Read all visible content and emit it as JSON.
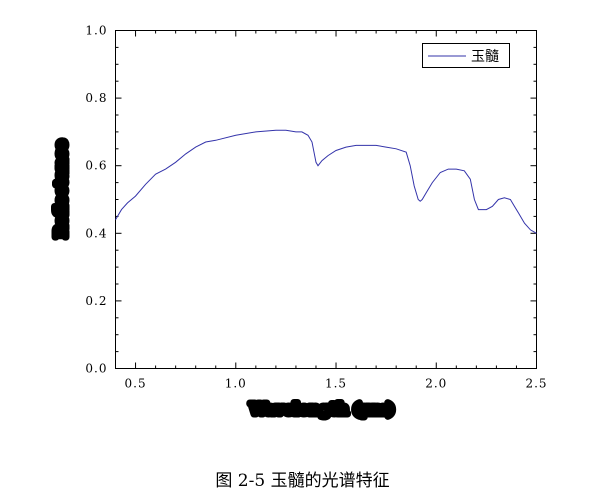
{
  "caption": "图 2-5  玉髓的光谱特征",
  "chart_data": {
    "type": "line",
    "xlabel": "Wavelength (μm)",
    "ylabel": "Reflectance",
    "xlim": [
      0.4,
      2.5
    ],
    "ylim": [
      0.0,
      1.0
    ],
    "xticks": [
      0.5,
      1.0,
      1.5,
      2.0,
      2.5
    ],
    "xtick_labels": [
      "0.5",
      "1.0",
      "1.5",
      "2.0",
      "2.5"
    ],
    "yticks": [
      0.0,
      0.2,
      0.4,
      0.6,
      0.8,
      1.0
    ],
    "ytick_labels": [
      "0.0",
      "0.2",
      "0.4",
      "0.6",
      "0.8",
      "1.0"
    ],
    "grid": false,
    "legend_position": "top-right",
    "line_color": "#3333aa",
    "series": [
      {
        "name": "玉髓",
        "x": [
          0.4,
          0.43,
          0.46,
          0.5,
          0.55,
          0.6,
          0.65,
          0.7,
          0.75,
          0.8,
          0.85,
          0.9,
          1.0,
          1.1,
          1.2,
          1.25,
          1.3,
          1.33,
          1.36,
          1.38,
          1.39,
          1.4,
          1.41,
          1.43,
          1.46,
          1.5,
          1.55,
          1.6,
          1.65,
          1.7,
          1.75,
          1.8,
          1.85,
          1.87,
          1.89,
          1.91,
          1.92,
          1.93,
          1.95,
          1.98,
          2.02,
          2.06,
          2.1,
          2.14,
          2.17,
          2.19,
          2.21,
          2.23,
          2.25,
          2.28,
          2.31,
          2.34,
          2.37,
          2.39,
          2.41,
          2.44,
          2.47,
          2.5
        ],
        "y": [
          0.44,
          0.47,
          0.49,
          0.51,
          0.545,
          0.575,
          0.59,
          0.61,
          0.635,
          0.655,
          0.67,
          0.675,
          0.69,
          0.7,
          0.705,
          0.705,
          0.7,
          0.7,
          0.69,
          0.67,
          0.64,
          0.61,
          0.6,
          0.615,
          0.63,
          0.645,
          0.655,
          0.66,
          0.66,
          0.66,
          0.655,
          0.65,
          0.64,
          0.6,
          0.54,
          0.5,
          0.495,
          0.5,
          0.52,
          0.55,
          0.58,
          0.59,
          0.59,
          0.585,
          0.56,
          0.5,
          0.47,
          0.47,
          0.47,
          0.48,
          0.5,
          0.505,
          0.5,
          0.48,
          0.46,
          0.43,
          0.41,
          0.4
        ]
      }
    ]
  }
}
